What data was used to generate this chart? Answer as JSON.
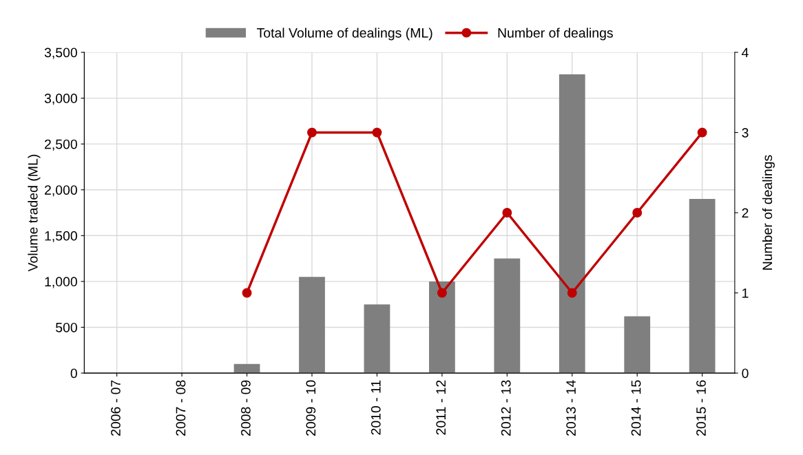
{
  "chart_data": {
    "type": "bar",
    "ylabel": "Volume traded (ML)",
    "y2label": "Number of dealings",
    "categories": [
      "2006 - 07",
      "2007 - 08",
      "2008 - 09",
      "2009 - 10",
      "2010 - 11",
      "2011 - 12",
      "2012 - 13",
      "2013 - 14",
      "2014 - 15",
      "2015 - 16"
    ],
    "series": [
      {
        "name": "Total Volume of dealings (ML)",
        "color": "#7f7f7f",
        "values": [
          null,
          null,
          100,
          1050,
          750,
          1000,
          1250,
          3260,
          620,
          1900
        ]
      },
      {
        "name": "Number of dealings",
        "type": "line",
        "axis": "y2",
        "color": "#c00000",
        "marker": "circle",
        "values": [
          null,
          null,
          1,
          3,
          3,
          1,
          2,
          1,
          2,
          3
        ]
      }
    ],
    "ylim": [
      0,
      3500
    ],
    "yticks": [
      {
        "value": 0,
        "label": "0"
      },
      {
        "value": 500,
        "label": "500"
      },
      {
        "value": 1000,
        "label": "1,000"
      },
      {
        "value": 1500,
        "label": "1,500"
      },
      {
        "value": 2000,
        "label": "2,000"
      },
      {
        "value": 2500,
        "label": "2,500"
      },
      {
        "value": 3000,
        "label": "3,000"
      },
      {
        "value": 3500,
        "label": "3,500"
      }
    ],
    "y2lim": [
      0,
      4
    ],
    "y2ticks": [
      0,
      1,
      2,
      3,
      4
    ],
    "grid": true,
    "legend": "top"
  }
}
